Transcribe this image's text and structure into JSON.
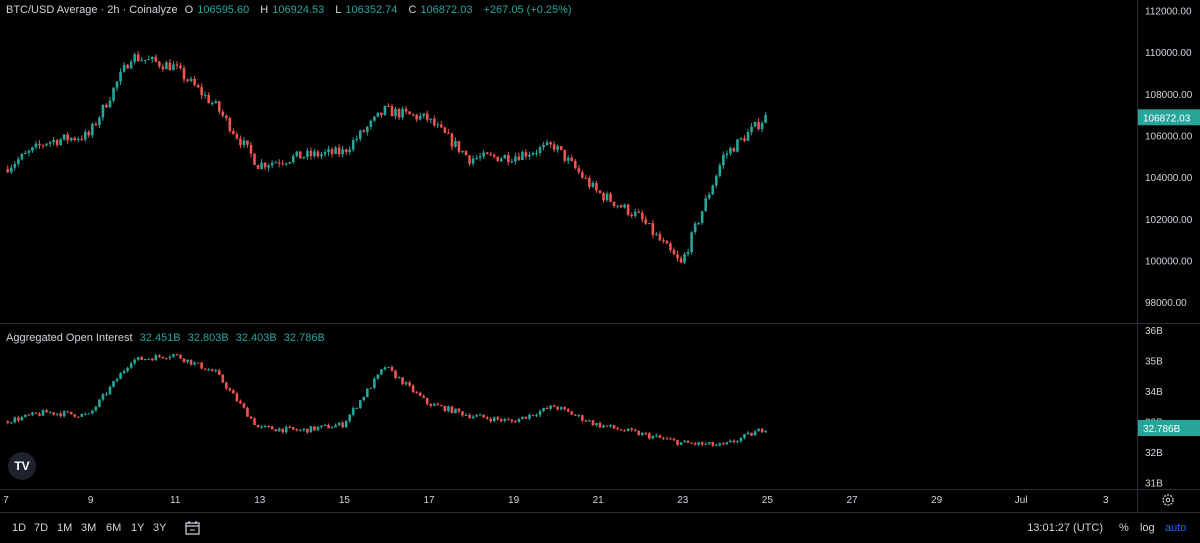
{
  "legend": {
    "symbol": "BTC/USD Average · 2h · Coinalyze",
    "o_label": "O",
    "o": "106595.60",
    "h_label": "H",
    "h": "106924.53",
    "l_label": "L",
    "l": "106352.74",
    "c_label": "C",
    "c": "106872.03",
    "change": "+267.05 (+0.25%)"
  },
  "oi_legend": {
    "title": "Aggregated Open Interest",
    "o": "32.451B",
    "h": "32.803B",
    "l": "32.403B",
    "c": "32.786B"
  },
  "colors": {
    "up": "#26a69a",
    "down": "#ef5350",
    "axis_text": "#d1d4dc",
    "divider": "#2a2e39"
  },
  "chart_data": [
    {
      "type": "candlestick",
      "name": "BTC/USD Average",
      "ylim": [
        97000,
        112500
      ],
      "y_ticks": [
        "98000.00",
        "100000.00",
        "102000.00",
        "104000.00",
        "106000.00",
        "108000.00",
        "110000.00",
        "112000.00"
      ],
      "last_value": "106872.03",
      "x": [
        7,
        8,
        9,
        10,
        11,
        12,
        13,
        14,
        15,
        16,
        17,
        18,
        19,
        20,
        21,
        22,
        23,
        24,
        25
      ],
      "close": [
        104400,
        105700,
        106000,
        109800,
        109300,
        107400,
        104600,
        105000,
        105200,
        107200,
        106800,
        104900,
        105000,
        105500,
        103300,
        102100,
        99800,
        105000,
        106872
      ],
      "x_ticks": [
        "7",
        "9",
        "11",
        "13",
        "15",
        "17",
        "19",
        "21",
        "23",
        "25",
        "27",
        "29",
        "Jul",
        "3"
      ]
    },
    {
      "type": "candlestick",
      "name": "Aggregated Open Interest",
      "ylim": [
        30.75,
        36.2
      ],
      "y_ticks": [
        "31B",
        "32B",
        "33B",
        "34B",
        "35B",
        "36B"
      ],
      "last_value": "32.786B",
      "x": [
        7,
        8,
        9,
        10,
        11,
        12,
        13,
        14,
        15,
        16,
        17,
        18,
        19,
        20,
        21,
        22,
        23,
        24,
        25
      ],
      "close": [
        33.0,
        33.3,
        33.2,
        35.0,
        35.2,
        34.6,
        32.8,
        32.7,
        32.9,
        34.8,
        33.6,
        33.2,
        33.0,
        33.5,
        32.9,
        32.6,
        32.3,
        32.2,
        32.786
      ]
    }
  ],
  "timeframes": [
    "1D",
    "7D",
    "1M",
    "3M",
    "6M",
    "1Y",
    "3Y"
  ],
  "clock": "13:01:27 (UTC)",
  "scale_options": [
    "%",
    "log",
    "auto"
  ],
  "icons": [
    "calendar-range-icon",
    "settings-gear-icon",
    "tradingview-logo-icon"
  ]
}
